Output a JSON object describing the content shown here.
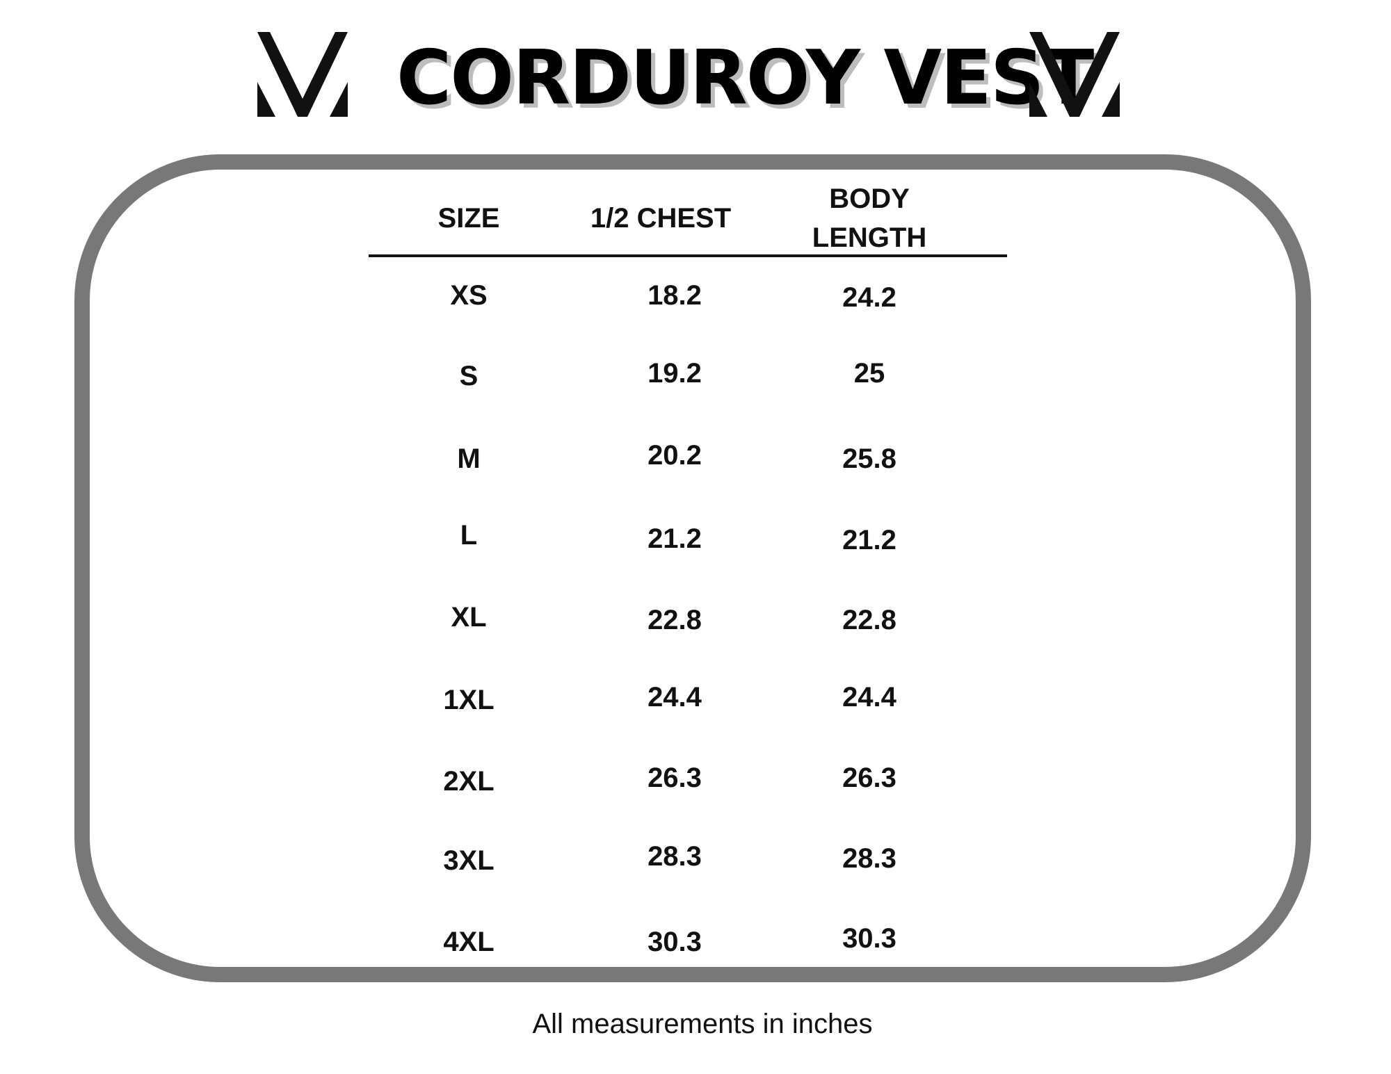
{
  "title": "CORDUROY VEST",
  "logo_icon": "chevron-v-logo-icon",
  "frame_color": "#787878",
  "table": {
    "headers": {
      "size": "SIZE",
      "chest": "1/2 CHEST",
      "body_line1": "BODY",
      "body_line2": "LENGTH"
    },
    "rows": [
      {
        "size": "XS",
        "chest": "18.2",
        "body": "24.2"
      },
      {
        "size": "S",
        "chest": "19.2",
        "body": "25"
      },
      {
        "size": "M",
        "chest": "20.2",
        "body": "25.8"
      },
      {
        "size": "L",
        "chest": "21.2",
        "body": "21.2"
      },
      {
        "size": "XL",
        "chest": "22.8",
        "body": "22.8"
      },
      {
        "size": "1XL",
        "chest": "24.4",
        "body": "24.4"
      },
      {
        "size": "2XL",
        "chest": "26.3",
        "body": "26.3"
      },
      {
        "size": "3XL",
        "chest": "28.3",
        "body": "28.3"
      },
      {
        "size": "4XL",
        "chest": "30.3",
        "body": "30.3"
      }
    ]
  },
  "footnote": "All measurements in inches"
}
